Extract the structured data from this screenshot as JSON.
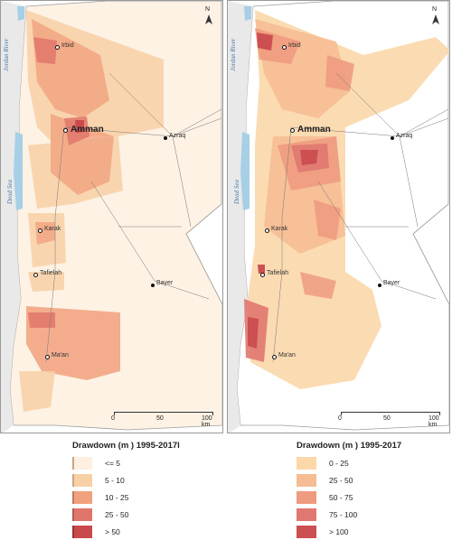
{
  "left_map": {
    "labels": {
      "irbid": "Irbid",
      "amman": "Amman",
      "azraq": "Azraq",
      "karak": "Karak",
      "tafielah": "Tafielah",
      "bayer": "Bayer",
      "maan": "Ma'an",
      "jordan_river": "Jordan River",
      "dead_sea": "Dead Sea"
    },
    "north_label": "N",
    "scale": [
      "0",
      "50",
      "100 km"
    ]
  },
  "right_map": {
    "labels": {
      "irbid": "Irbid",
      "amman": "Amman",
      "azraq": "Azraq",
      "karak": "Karak",
      "tafielah": "Tafielah",
      "bayer": "Bayer",
      "maan": "Ma'an",
      "jordan_river": "Jordan River",
      "dead_sea": "Dead Sea"
    },
    "north_label": "N",
    "scale": [
      "0",
      "50",
      "100 km"
    ]
  },
  "legend_left": {
    "title": "Drawdown (m ) 1995-2017l",
    "items": [
      {
        "label": "<= 5",
        "color": "#fdf0e0"
      },
      {
        "label": "5 - 10",
        "color": "#f8d0a6"
      },
      {
        "label": "10 - 25",
        "color": "#f1a17e"
      },
      {
        "label": "25 - 50",
        "color": "#e0766b"
      },
      {
        "label": "> 50",
        "color": "#c94a4c"
      }
    ]
  },
  "legend_right": {
    "title": "Drawdown (m ) 1995-2017",
    "items": [
      {
        "label": "0 - 25",
        "color": "#fbd7aa"
      },
      {
        "label": "25 - 50",
        "color": "#f6bc94"
      },
      {
        "label": "50 - 75",
        "color": "#ee9b80"
      },
      {
        "label": "75 - 100",
        "color": "#e07770"
      },
      {
        "label": "> 100",
        "color": "#cc4f52"
      }
    ]
  }
}
